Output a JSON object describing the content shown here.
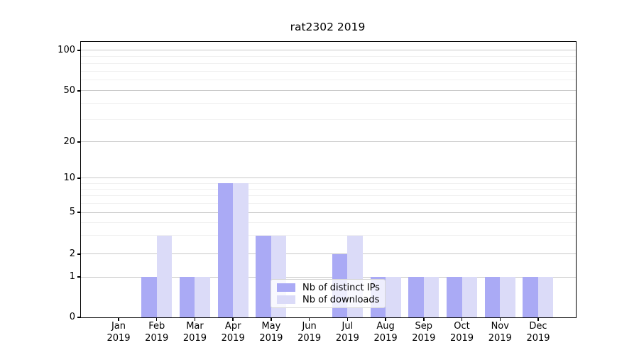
{
  "chart_data": {
    "type": "bar",
    "title": "rat2302 2019",
    "categories": [
      "Jan 2019",
      "Feb 2019",
      "Mar 2019",
      "Apr 2019",
      "May 2019",
      "Jun 2019",
      "Jul 2019",
      "Aug 2019",
      "Sep 2019",
      "Oct 2019",
      "Nov 2019",
      "Dec 2019"
    ],
    "series": [
      {
        "name": "Nb of distinct IPs",
        "color": "#aaaaf5",
        "values": [
          0,
          1,
          1,
          9,
          3,
          0,
          2,
          1,
          1,
          1,
          1,
          1
        ]
      },
      {
        "name": "Nb of downloads",
        "color": "#dbdbf8",
        "values": [
          0,
          3,
          1,
          9,
          3,
          0,
          3,
          1,
          1,
          1,
          1,
          1
        ]
      }
    ],
    "xlabel": "",
    "ylabel": "",
    "yscale": "log-like (0 baseline, log above 1)",
    "ylim": [
      0,
      113
    ],
    "y_major_ticks": [
      0,
      1,
      2,
      5,
      10,
      20,
      50,
      100
    ],
    "y_minor_ticks": [
      3,
      4,
      6,
      7,
      8,
      9,
      30,
      40,
      60,
      70,
      80,
      90
    ],
    "grid": "on",
    "legend_position": "lower center (inside plot)",
    "colors": {
      "bar_distinct_ips": "#aaaaf5",
      "bar_downloads": "#dbdbf8",
      "grid_major": "#c9c9c9",
      "grid_minor": "#f0f0f0",
      "spine": "#000000",
      "text": "#000000",
      "legend_border": "#d5d5d5"
    }
  }
}
